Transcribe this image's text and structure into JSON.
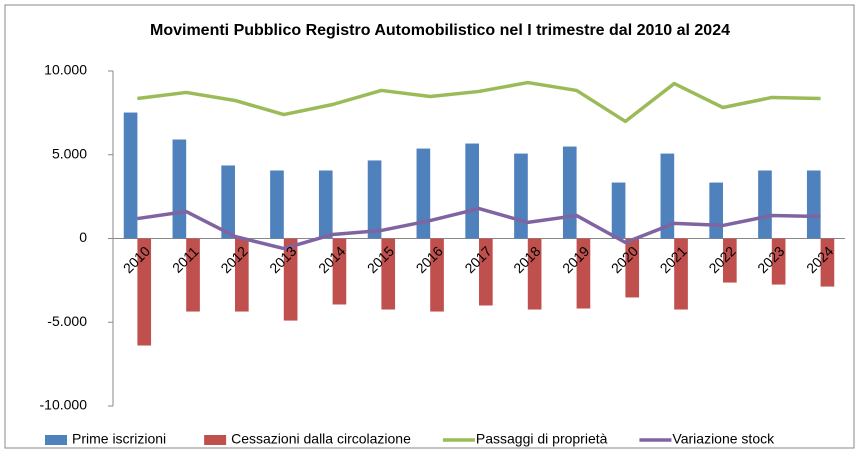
{
  "chart_data": {
    "type": "bar",
    "title": "Movimenti Pubblico Registro Automobilistico nel I trimestre dal 2010 al 2024",
    "categories": [
      "2010",
      "2011",
      "2012",
      "2013",
      "2014",
      "2015",
      "2016",
      "2017",
      "2018",
      "2019",
      "2020",
      "2021",
      "2022",
      "2023",
      "2024"
    ],
    "series": [
      {
        "name": "Prime iscrizioni",
        "type": "bar",
        "color": "#4f81bd",
        "values": [
          7520,
          5910,
          4360,
          4060,
          4060,
          4660,
          5370,
          5670,
          5070,
          5490,
          3340,
          5070,
          3340,
          4060,
          4060
        ]
      },
      {
        "name": "Cessazioni dalla circolazione",
        "type": "bar",
        "color": "#c0504d",
        "values": [
          -6390,
          -4360,
          -4360,
          -4900,
          -3940,
          -4240,
          -4360,
          -4000,
          -4240,
          -4180,
          -3520,
          -4240,
          -2630,
          -2750,
          -2870
        ]
      },
      {
        "name": "Passaggi di proprietà",
        "type": "line",
        "color": "#9bbb59",
        "values": [
          8360,
          8720,
          8240,
          7400,
          8000,
          8840,
          8480,
          8780,
          9310,
          8840,
          6990,
          9250,
          7820,
          8420,
          8360
        ]
      },
      {
        "name": "Variazione stock",
        "type": "line",
        "color": "#8064a2",
        "values": [
          1190,
          1610,
          120,
          -600,
          240,
          480,
          1070,
          1790,
          960,
          1370,
          -240,
          900,
          780,
          1370,
          1310
        ]
      }
    ],
    "ylim": [
      -10000,
      10000
    ],
    "yticks": [
      {
        "value": 10000,
        "label": "10.000"
      },
      {
        "value": 5000,
        "label": "5.000"
      },
      0,
      {
        "value": -5000,
        "label": "-5.000"
      },
      {
        "value": -10000,
        "label": "-10.000"
      }
    ],
    "grid": false,
    "legend": "bottom"
  }
}
